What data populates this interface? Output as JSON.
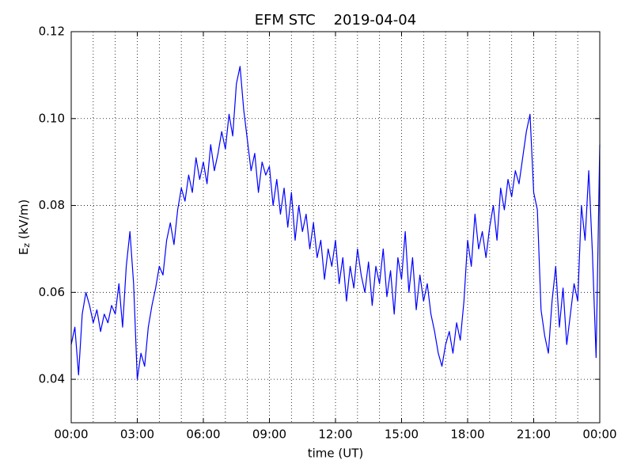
{
  "chart_data": {
    "type": "line",
    "title": "EFM STC    2019-04-04",
    "xlabel": "time (UT)",
    "ylabel": {
      "base": "E",
      "sub": "z",
      "rest": " (kV/m)"
    },
    "xlim": [
      0,
      1440
    ],
    "xticks": [
      {
        "value": 0,
        "label": "00:00"
      },
      {
        "value": 180,
        "label": "03:00"
      },
      {
        "value": 360,
        "label": "06:00"
      },
      {
        "value": 540,
        "label": "09:00"
      },
      {
        "value": 720,
        "label": "12:00"
      },
      {
        "value": 900,
        "label": "15:00"
      },
      {
        "value": 1080,
        "label": "18:00"
      },
      {
        "value": 1260,
        "label": "21:00"
      },
      {
        "value": 1440,
        "label": "00:00"
      }
    ],
    "xminorticks": [
      60,
      120,
      240,
      300,
      420,
      480,
      600,
      660,
      780,
      840,
      960,
      1020,
      1140,
      1200,
      1320,
      1380
    ],
    "ylim": [
      0.03,
      0.12
    ],
    "yticks": [
      0.04,
      0.06,
      0.08,
      {
        "value": 0.1,
        "label": "0.10"
      },
      0.12
    ],
    "grid": true,
    "x": [
      0,
      10,
      20,
      30,
      40,
      50,
      60,
      70,
      80,
      90,
      100,
      110,
      120,
      130,
      140,
      150,
      160,
      170,
      180,
      190,
      200,
      210,
      220,
      230,
      240,
      250,
      260,
      270,
      280,
      290,
      300,
      310,
      320,
      330,
      340,
      350,
      360,
      370,
      380,
      390,
      400,
      410,
      420,
      430,
      440,
      450,
      460,
      470,
      480,
      490,
      500,
      510,
      520,
      530,
      540,
      550,
      560,
      570,
      580,
      590,
      600,
      610,
      620,
      630,
      640,
      650,
      660,
      670,
      680,
      690,
      700,
      710,
      720,
      730,
      740,
      750,
      760,
      770,
      780,
      790,
      800,
      810,
      820,
      830,
      840,
      850,
      860,
      870,
      880,
      890,
      900,
      910,
      920,
      930,
      940,
      950,
      960,
      970,
      980,
      990,
      1000,
      1010,
      1020,
      1030,
      1040,
      1050,
      1060,
      1070,
      1080,
      1090,
      1100,
      1110,
      1120,
      1130,
      1140,
      1150,
      1160,
      1170,
      1180,
      1190,
      1200,
      1210,
      1220,
      1230,
      1240,
      1250,
      1260,
      1270,
      1280,
      1290,
      1300,
      1310,
      1320,
      1330,
      1340,
      1350,
      1360,
      1370,
      1380,
      1390,
      1400,
      1410,
      1420,
      1430,
      1440
    ],
    "series": [
      {
        "name": "Ez",
        "color": "#0000ff",
        "values": [
          0.048,
          0.052,
          0.041,
          0.055,
          0.06,
          0.057,
          0.053,
          0.056,
          0.051,
          0.055,
          0.053,
          0.057,
          0.055,
          0.062,
          0.052,
          0.066,
          0.074,
          0.062,
          0.04,
          0.046,
          0.043,
          0.052,
          0.057,
          0.061,
          0.066,
          0.064,
          0.072,
          0.076,
          0.071,
          0.079,
          0.084,
          0.081,
          0.087,
          0.083,
          0.091,
          0.086,
          0.09,
          0.085,
          0.094,
          0.088,
          0.092,
          0.097,
          0.093,
          0.101,
          0.096,
          0.108,
          0.112,
          0.102,
          0.095,
          0.088,
          0.092,
          0.083,
          0.09,
          0.087,
          0.089,
          0.08,
          0.086,
          0.078,
          0.084,
          0.075,
          0.083,
          0.072,
          0.08,
          0.074,
          0.078,
          0.07,
          0.076,
          0.068,
          0.072,
          0.063,
          0.07,
          0.066,
          0.072,
          0.062,
          0.068,
          0.058,
          0.066,
          0.061,
          0.07,
          0.064,
          0.06,
          0.067,
          0.057,
          0.066,
          0.062,
          0.07,
          0.059,
          0.065,
          0.055,
          0.068,
          0.063,
          0.074,
          0.06,
          0.068,
          0.056,
          0.064,
          0.058,
          0.062,
          0.055,
          0.051,
          0.046,
          0.043,
          0.048,
          0.051,
          0.046,
          0.053,
          0.049,
          0.058,
          0.072,
          0.066,
          0.078,
          0.07,
          0.074,
          0.068,
          0.075,
          0.08,
          0.072,
          0.084,
          0.079,
          0.086,
          0.082,
          0.088,
          0.085,
          0.091,
          0.097,
          0.101,
          0.083,
          0.079,
          0.056,
          0.05,
          0.046,
          0.058,
          0.066,
          0.052,
          0.061,
          0.048,
          0.055,
          0.062,
          0.058,
          0.08,
          0.072,
          0.088,
          0.069,
          0.045,
          0.094
        ]
      }
    ]
  }
}
